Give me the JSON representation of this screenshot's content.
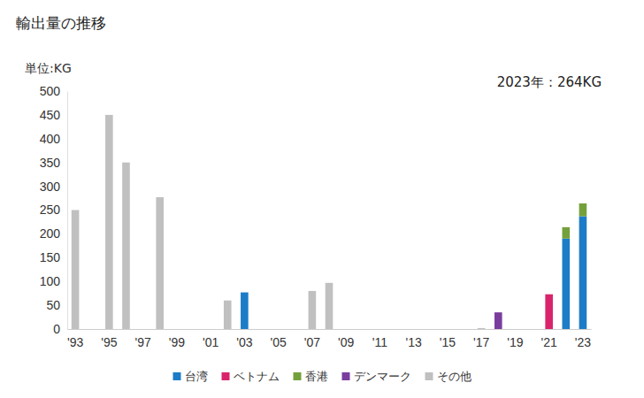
{
  "chart_data": {
    "type": "bar",
    "title": "輸出量の推移",
    "y_label": "単位:KG",
    "annotations": [
      "2023年：264KG"
    ],
    "stacked": true,
    "grid": false,
    "legend": "bottom",
    "categories": [
      "'93",
      null,
      "'95",
      null,
      "'97",
      null,
      "'99",
      null,
      "'01",
      null,
      "'03",
      null,
      "'05",
      null,
      "'07",
      null,
      "'09",
      null,
      "'11",
      null,
      "'13",
      null,
      "'15",
      null,
      "'17",
      null,
      "'19",
      null,
      "'21",
      null,
      "'23"
    ],
    "series": [
      {
        "name": "台湾",
        "color": "#1c7cc7",
        "values": [
          null,
          null,
          null,
          null,
          null,
          null,
          null,
          null,
          null,
          null,
          77,
          null,
          null,
          null,
          null,
          null,
          null,
          null,
          null,
          null,
          null,
          null,
          null,
          null,
          null,
          null,
          null,
          null,
          null,
          190,
          237
        ]
      },
      {
        "name": "ベトナム",
        "color": "#d9246b",
        "values": [
          null,
          null,
          null,
          null,
          null,
          null,
          null,
          null,
          null,
          null,
          null,
          null,
          null,
          null,
          null,
          null,
          null,
          null,
          null,
          null,
          null,
          null,
          null,
          null,
          null,
          null,
          null,
          null,
          73,
          null,
          null
        ]
      },
      {
        "name": "香港",
        "color": "#74a03c",
        "values": [
          null,
          null,
          null,
          null,
          null,
          null,
          null,
          null,
          null,
          null,
          null,
          null,
          null,
          null,
          null,
          null,
          null,
          null,
          null,
          null,
          null,
          null,
          null,
          null,
          null,
          null,
          null,
          null,
          null,
          24,
          27
        ]
      },
      {
        "name": "デンマーク",
        "color": "#7a3d9e",
        "values": [
          null,
          null,
          null,
          null,
          null,
          null,
          null,
          null,
          null,
          null,
          null,
          null,
          null,
          null,
          null,
          null,
          null,
          null,
          null,
          null,
          null,
          null,
          null,
          null,
          null,
          35,
          null,
          null,
          null,
          null,
          null
        ]
      },
      {
        "name": "その他",
        "color": "#c0c0c0",
        "values": [
          250,
          null,
          450,
          350,
          null,
          277,
          null,
          null,
          null,
          60,
          null,
          null,
          null,
          null,
          80,
          97,
          null,
          null,
          null,
          null,
          null,
          null,
          null,
          null,
          2,
          null,
          null,
          null,
          null,
          null,
          null
        ]
      }
    ],
    "ylim": [
      0,
      500
    ],
    "yticks": [
      0,
      50,
      100,
      150,
      200,
      250,
      300,
      350,
      400,
      450,
      500
    ]
  }
}
